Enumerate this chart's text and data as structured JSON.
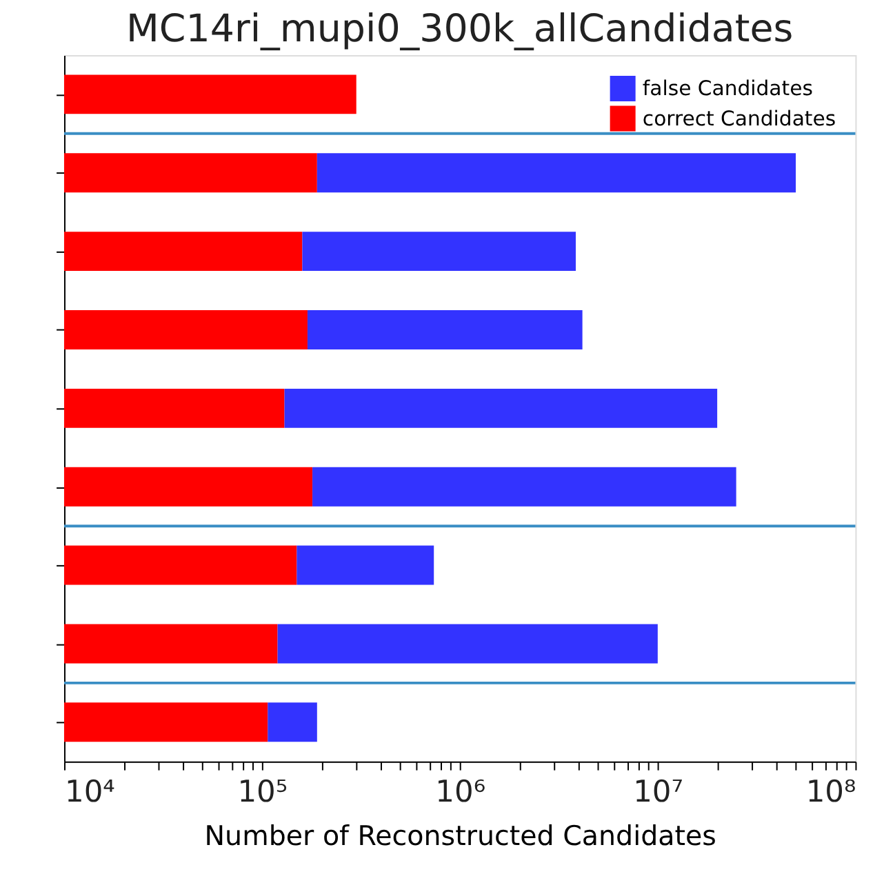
{
  "chart_data": {
    "type": "bar",
    "orientation": "horizontal",
    "title": "MC14ri_mupi0_300k_allCandidates",
    "xlabel": "Number of Reconstructed Candidates",
    "categories": [
      null,
      null,
      null,
      null,
      null,
      null,
      null,
      null,
      null
    ],
    "series": [
      {
        "name": "correct Candidates",
        "color": "#ff0000",
        "values": [
          300000,
          190000,
          160000,
          170000,
          130000,
          180000,
          150000,
          120000,
          107000
        ]
      },
      {
        "name": "false Candidates",
        "color": "#3333ff",
        "values": [
          null,
          49800000,
          3700000,
          4000000,
          19900000,
          24800000,
          590000,
          9900000,
          83000
        ]
      }
    ],
    "stacked": true,
    "log": "x",
    "xlim": [
      10000,
      100000000
    ],
    "xticks": [
      {
        "value": 10000,
        "label": "10⁴"
      },
      {
        "value": 20000,
        "label": null
      },
      {
        "value": 30000,
        "label": null
      },
      {
        "value": 40000,
        "label": null
      },
      {
        "value": 50000,
        "label": null
      },
      {
        "value": 60000,
        "label": null
      },
      {
        "value": 70000,
        "label": null
      },
      {
        "value": 80000,
        "label": null
      },
      {
        "value": 90000,
        "label": null
      },
      {
        "value": 100000,
        "label": "10⁵"
      },
      {
        "value": 200000,
        "label": null
      },
      {
        "value": 300000,
        "label": null
      },
      {
        "value": 400000,
        "label": null
      },
      {
        "value": 500000,
        "label": null
      },
      {
        "value": 600000,
        "label": null
      },
      {
        "value": 700000,
        "label": null
      },
      {
        "value": 800000,
        "label": null
      },
      {
        "value": 900000,
        "label": null
      },
      {
        "value": 1000000,
        "label": "10⁶"
      },
      {
        "value": 2000000,
        "label": null
      },
      {
        "value": 3000000,
        "label": null
      },
      {
        "value": 4000000,
        "label": null
      },
      {
        "value": 5000000,
        "label": null
      },
      {
        "value": 6000000,
        "label": null
      },
      {
        "value": 7000000,
        "label": null
      },
      {
        "value": 8000000,
        "label": null
      },
      {
        "value": 9000000,
        "label": null
      },
      {
        "value": 10000000,
        "label": "10⁷"
      },
      {
        "value": 20000000,
        "label": null
      },
      {
        "value": 30000000,
        "label": null
      },
      {
        "value": 40000000,
        "label": null
      },
      {
        "value": 50000000,
        "label": null
      },
      {
        "value": 60000000,
        "label": null
      },
      {
        "value": 70000000,
        "label": null
      },
      {
        "value": 80000000,
        "label": null
      },
      {
        "value": 90000000,
        "label": null
      },
      {
        "value": 100000000,
        "label": "10⁸"
      }
    ],
    "legend": "top right",
    "grid": false,
    "tick_labels": "x"
  }
}
